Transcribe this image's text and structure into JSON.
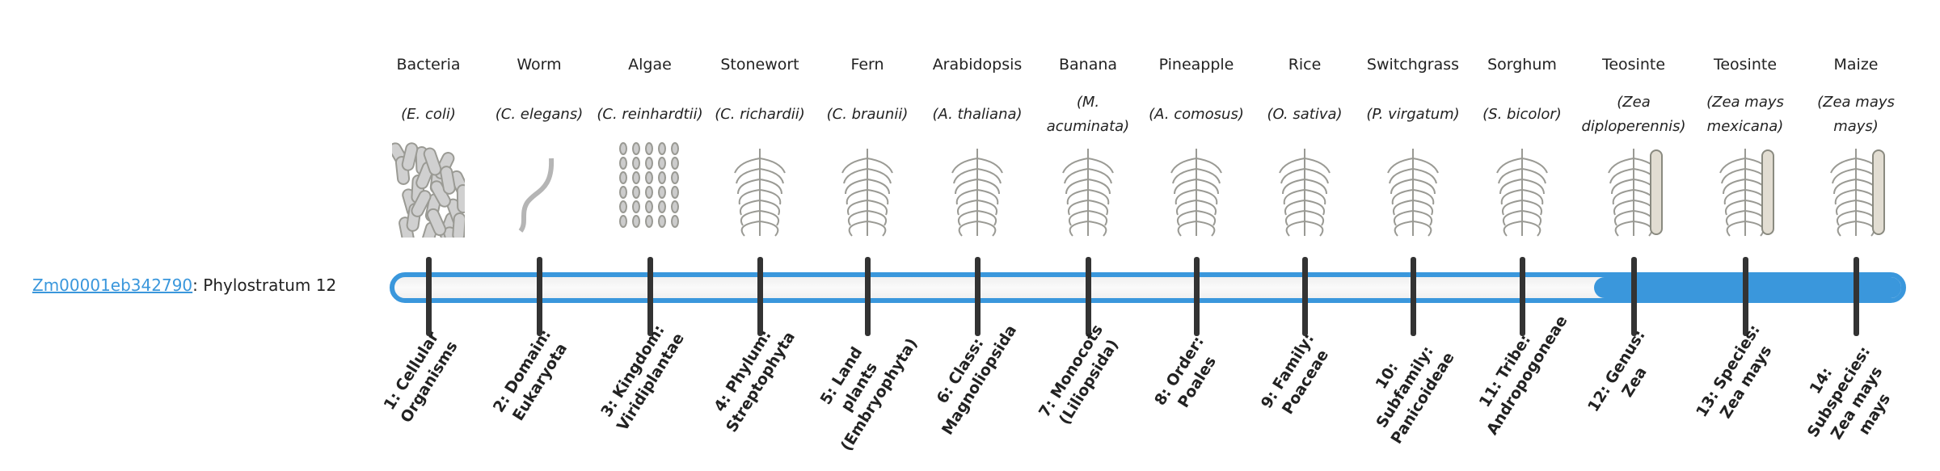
{
  "gene": {
    "id": "Zm00001eb342790",
    "suffix": ": Phylostratum 12",
    "phylostratum": 12,
    "total_strata": 14
  },
  "colors": {
    "accent": "#3a97dc",
    "tick": "#333333"
  },
  "strata": [
    {
      "common": "Bacteria",
      "scientific": "(E. coli)",
      "rank": "1: Cellular Organisms",
      "icon": "bacteria-illustration"
    },
    {
      "common": "Worm",
      "scientific": "(C. elegans)",
      "rank": "2: Domain: Eukaryota",
      "icon": "worm-illustration"
    },
    {
      "common": "Algae",
      "scientific": "(C. reinhardtii)",
      "rank": "3: Kingdom: Viridiplantae",
      "icon": "algae-illustration"
    },
    {
      "common": "Stonewort",
      "scientific": "(C. richardii)",
      "rank": "4: Phylum: Streptophyta",
      "icon": "stonewort-illustration"
    },
    {
      "common": "Fern",
      "scientific": "(C. braunii)",
      "rank": "5: Land plants (Embryophyta)",
      "icon": "fern-illustration"
    },
    {
      "common": "Arabidopsis",
      "scientific": "(A. thaliana)",
      "rank": "6: Class: Magnoliopsida",
      "icon": "arabidopsis-illustration"
    },
    {
      "common": "Banana",
      "scientific": "(M. acuminata)",
      "rank": "7: Monocots (Liliopsida)",
      "icon": "banana-illustration"
    },
    {
      "common": "Pineapple",
      "scientific": "(A. comosus)",
      "rank": "8: Order: Poales",
      "icon": "pineapple-illustration"
    },
    {
      "common": "Rice",
      "scientific": "(O. sativa)",
      "rank": "9: Family: Poaceae",
      "icon": "rice-illustration"
    },
    {
      "common": "Switchgrass",
      "scientific": "(P. virgatum)",
      "rank": "10: Subfamily: Panicoideae",
      "icon": "switchgrass-illustration"
    },
    {
      "common": "Sorghum",
      "scientific": "(S. bicolor)",
      "rank": "11: Tribe: Andropogoneae",
      "icon": "sorghum-illustration"
    },
    {
      "common": "Teosinte",
      "scientific": "(Zea diploperennis)",
      "rank": "12: Genus: Zea",
      "icon": "teosinte-illustration"
    },
    {
      "common": "Teosinte",
      "scientific": "(Zea mays mexicana)",
      "rank": "13: Species: Zea mays",
      "icon": "teosinte-illustration"
    },
    {
      "common": "Maize",
      "scientific": "(Zea mays mays)",
      "rank": "14: Subspecies: Zea mays mays",
      "icon": "maize-illustration"
    }
  ]
}
